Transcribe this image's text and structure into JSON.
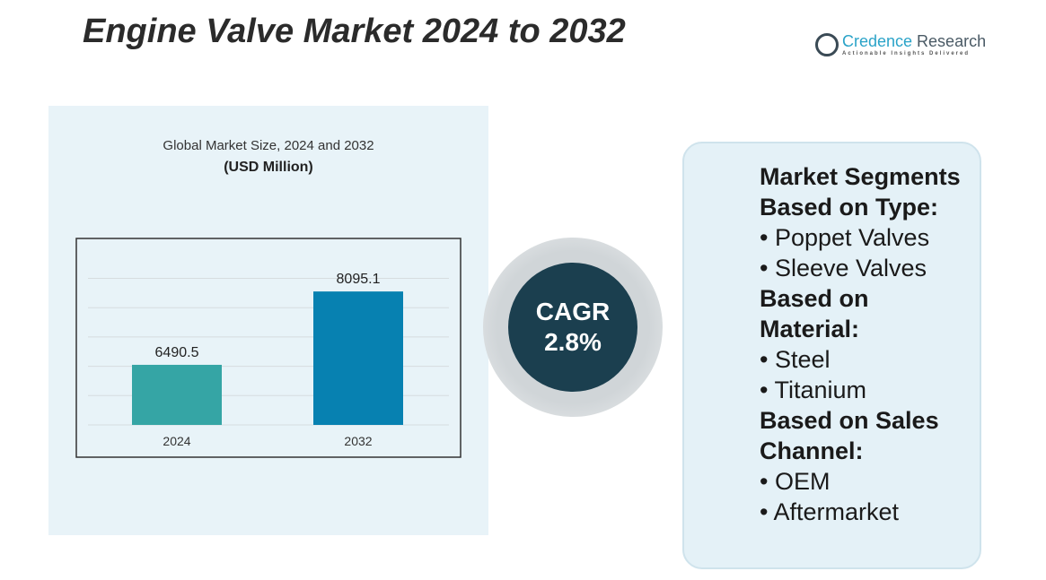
{
  "title": "Engine Valve Market 2024 to 2032",
  "logo": {
    "name_part1": "Credence",
    "name_part2": " Research",
    "tagline": "Actionable Insights Delivered"
  },
  "chart_data": {
    "type": "bar",
    "title": "Global Market Size, 2024 and 2032",
    "ylabel": "(USD Million)",
    "categories": [
      "2024",
      "2032"
    ],
    "values": [
      6490.5,
      8095.1
    ],
    "value_labels": [
      "6490.5",
      "8095.1"
    ],
    "colors": [
      "#35a5a5",
      "#0781b1"
    ],
    "ylim": [
      5176,
      9000
    ],
    "grid": true
  },
  "cagr": {
    "label": "CAGR",
    "value": "2.8%"
  },
  "segments": {
    "heading": "Market Segments",
    "groups": [
      {
        "title": "Based on Type:",
        "items": [
          "Poppet Valves",
          "Sleeve Valves"
        ]
      },
      {
        "title": "Based on Material:",
        "items": [
          "Steel",
          "Titanium"
        ]
      },
      {
        "title": "Based on Sales Channel:",
        "items": [
          "OEM",
          "Aftermarket"
        ]
      }
    ]
  }
}
